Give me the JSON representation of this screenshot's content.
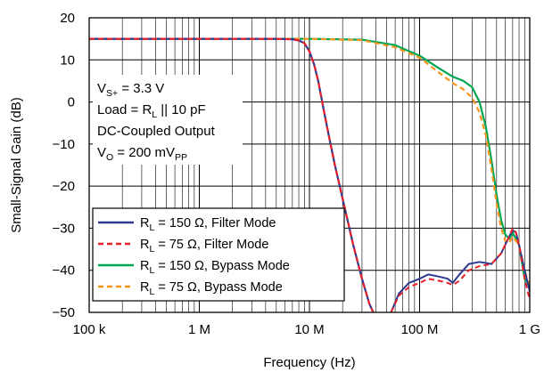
{
  "chart_data": {
    "type": "line",
    "x_scale": "log",
    "xlabel": "Frequency (Hz)",
    "ylabel": "Small-Signal Gain (dB)",
    "xlim": [
      100000,
      1000000000
    ],
    "ylim": [
      -50,
      20
    ],
    "grid": true,
    "x_ticks": [
      {
        "value": 100000,
        "label": "100 k"
      },
      {
        "value": 1000000,
        "label": "1 M"
      },
      {
        "value": 10000000,
        "label": "10 M"
      },
      {
        "value": 100000000,
        "label": "100 M"
      },
      {
        "value": 1000000000,
        "label": "1 G"
      }
    ],
    "y_ticks": [
      {
        "value": 20,
        "label": "20"
      },
      {
        "value": 10,
        "label": "10"
      },
      {
        "value": 0,
        "label": "0"
      },
      {
        "value": -10,
        "label": "−10"
      },
      {
        "value": -20,
        "label": "−20"
      },
      {
        "value": -30,
        "label": "−30"
      },
      {
        "value": -40,
        "label": "−40"
      },
      {
        "value": -50,
        "label": "−50"
      }
    ],
    "annotations": [
      {
        "main": "V",
        "sub": "S+",
        "rest": " = 3.3 V"
      },
      {
        "main": "Load = R",
        "sub": "L",
        "rest": " || 10 pF"
      },
      {
        "main": "DC-Coupled Output",
        "sub": "",
        "rest": ""
      },
      {
        "main": "V",
        "sub": "O",
        "rest": " = 200 mV",
        "sub2": "PP"
      }
    ],
    "legend_placement": "bottom-left",
    "series": [
      {
        "name": "R_L = 150 Ω, Filter Mode",
        "legend": {
          "pre": "R",
          "sub": "L",
          "post": " = 150 Ω, Filter Mode"
        },
        "color": "#2b3990",
        "dash": "solid",
        "x": [
          100000,
          1000000,
          5000000,
          7000000,
          8000000,
          9000000,
          10000000,
          11000000,
          12000000,
          13500000,
          15000000,
          17000000,
          20000000,
          25000000,
          30000000,
          35000000,
          38000000
        ],
        "y": [
          15,
          15,
          15,
          14.9,
          14.6,
          14,
          12,
          9,
          5,
          -2,
          -8,
          -15,
          -23,
          -34,
          -42,
          -48,
          -51
        ]
      },
      {
        "name": "R_L = 75 Ω, Filter Mode",
        "legend": {
          "pre": "R",
          "sub": "L",
          "post": " = 75 Ω, Filter Mode"
        },
        "color": "#e8202a",
        "dash": "6,4",
        "x": [
          100000,
          1000000,
          5000000,
          7000000,
          8000000,
          9000000,
          10000000,
          11000000,
          12000000,
          13500000,
          15000000,
          17000000,
          20000000,
          25000000,
          30000000,
          35000000,
          38000000
        ],
        "y": [
          15,
          15,
          15,
          14.9,
          14.6,
          14,
          12,
          9,
          5,
          -2,
          -8,
          -15,
          -23,
          -34,
          -42,
          -48,
          -51
        ]
      },
      {
        "name": "R_L = 150 Ω, Bypass Mode",
        "legend": {
          "pre": "R",
          "sub": "L",
          "post": " = 150 Ω, Bypass Mode"
        },
        "color": "#00a651",
        "dash": "solid",
        "x": [
          100000,
          10000000,
          30000000,
          60000000,
          100000000,
          150000000,
          200000000,
          250000000,
          300000000,
          350000000,
          400000000,
          450000000,
          500000000,
          550000000,
          600000000,
          650000000,
          700000000,
          800000000,
          900000000,
          1000000000
        ],
        "y": [
          15,
          15,
          14.8,
          13.5,
          11,
          8,
          6,
          5,
          3.5,
          0,
          -6,
          -14,
          -22,
          -28,
          -31.5,
          -32.5,
          -31,
          -34,
          -42,
          -44
        ]
      },
      {
        "name": "R_L = 75 Ω, Bypass Mode",
        "legend": {
          "pre": "R",
          "sub": "L",
          "post": " = 75 Ω, Bypass Mode"
        },
        "color": "#f7941d",
        "dash": "6,4",
        "x": [
          100000,
          10000000,
          30000000,
          60000000,
          100000000,
          150000000,
          200000000,
          250000000,
          300000000,
          350000000,
          400000000,
          450000000,
          500000000,
          550000000,
          600000000,
          650000000,
          700000000,
          800000000,
          900000000,
          1000000000
        ],
        "y": [
          15,
          15,
          14.7,
          13,
          10.5,
          7,
          4.5,
          3,
          1,
          -2.5,
          -8,
          -16,
          -24,
          -30,
          -33,
          -33.5,
          -32,
          -34,
          -40,
          -44
        ]
      }
    ],
    "extra_segments": [
      {
        "series": "R_L = 150 Ω, Filter Mode",
        "x": [
          55000000,
          65000000,
          80000000,
          100000000,
          120000000,
          150000000,
          180000000,
          200000000,
          230000000,
          280000000,
          350000000,
          450000000,
          550000000,
          650000000,
          700000000,
          750000000,
          800000000,
          900000000,
          1000000000
        ],
        "y": [
          -50,
          -45.5,
          -43,
          -42,
          -41,
          -41.5,
          -42,
          -43,
          -41,
          -38.5,
          -38,
          -38.5,
          -36,
          -32,
          -30.5,
          -31,
          -34,
          -40,
          -45
        ]
      },
      {
        "series": "R_L = 75 Ω, Filter Mode",
        "x": [
          55000000,
          65000000,
          80000000,
          100000000,
          120000000,
          150000000,
          180000000,
          200000000,
          230000000,
          280000000,
          350000000,
          450000000,
          550000000,
          650000000,
          700000000,
          750000000,
          800000000,
          900000000,
          1000000000
        ],
        "y": [
          -50,
          -46,
          -44,
          -43,
          -42,
          -42.5,
          -43,
          -43.5,
          -42.5,
          -40,
          -39,
          -38.5,
          -36,
          -32,
          -30,
          -31,
          -34,
          -42,
          -47
        ]
      }
    ]
  }
}
